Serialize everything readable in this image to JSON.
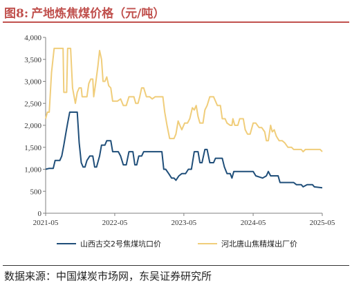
{
  "header": {
    "figure_label": "图8:",
    "title": "产地炼焦煤价格（元/吨）"
  },
  "source": {
    "text": "数据来源：中国煤炭市场网，东吴证券研究所"
  },
  "chart_data": {
    "type": "line",
    "title": "产地炼焦煤价格（元/吨）",
    "xlabel": "",
    "ylabel": "",
    "ylim": [
      0,
      4000
    ],
    "yticks": [
      0,
      500,
      1000,
      1500,
      2000,
      2500,
      3000,
      3500,
      4000
    ],
    "ytick_labels": [
      "0",
      "500",
      "1,000",
      "1,500",
      "2,000",
      "2,500",
      "3,000",
      "3,500",
      "4,000"
    ],
    "xlim": [
      "2021-05",
      "2025-05"
    ],
    "xticks": [
      "2021-05",
      "2022-05",
      "2023-05",
      "2024-05",
      "2025-05"
    ],
    "grid": false,
    "legend_position": "bottom",
    "series": [
      {
        "name": "山西古交2号焦煤坑口价",
        "color": "#1f4e79",
        "points": [
          [
            "2021-05-01",
            1000
          ],
          [
            "2021-05-20",
            1020
          ],
          [
            "2021-06-10",
            1020
          ],
          [
            "2021-06-20",
            1200
          ],
          [
            "2021-07-15",
            1200
          ],
          [
            "2021-07-25",
            1300
          ],
          [
            "2021-08-05",
            1550
          ],
          [
            "2021-08-15",
            1800
          ],
          [
            "2021-08-25",
            2050
          ],
          [
            "2021-09-05",
            2300
          ],
          [
            "2021-10-15",
            2300
          ],
          [
            "2021-10-25",
            1600
          ],
          [
            "2021-11-05",
            1150
          ],
          [
            "2021-11-15",
            1050
          ],
          [
            "2021-11-25",
            1050
          ],
          [
            "2021-12-05",
            1200
          ],
          [
            "2021-12-20",
            1300
          ],
          [
            "2022-01-05",
            1300
          ],
          [
            "2022-01-15",
            1050
          ],
          [
            "2022-01-25",
            1050
          ],
          [
            "2022-02-10",
            1300
          ],
          [
            "2022-02-20",
            1550
          ],
          [
            "2022-03-10",
            1550
          ],
          [
            "2022-03-20",
            1650
          ],
          [
            "2022-04-10",
            1650
          ],
          [
            "2022-04-20",
            1400
          ],
          [
            "2022-05-20",
            1400
          ],
          [
            "2022-06-01",
            1300
          ],
          [
            "2022-06-15",
            1100
          ],
          [
            "2022-07-01",
            1100
          ],
          [
            "2022-07-15",
            1400
          ],
          [
            "2022-08-05",
            1400
          ],
          [
            "2022-08-15",
            1100
          ],
          [
            "2022-08-25",
            1100
          ],
          [
            "2022-09-05",
            1300
          ],
          [
            "2022-09-20",
            1300
          ],
          [
            "2022-10-01",
            1400
          ],
          [
            "2022-12-20",
            1400
          ],
          [
            "2023-01-05",
            1400
          ],
          [
            "2023-01-15",
            1000
          ],
          [
            "2023-01-25",
            1000
          ],
          [
            "2023-02-10",
            900
          ],
          [
            "2023-02-25",
            800
          ],
          [
            "2023-03-10",
            800
          ],
          [
            "2023-03-20",
            750
          ],
          [
            "2023-04-05",
            850
          ],
          [
            "2023-04-20",
            900
          ],
          [
            "2023-05-10",
            900
          ],
          [
            "2023-05-25",
            1000
          ],
          [
            "2023-06-10",
            1000
          ],
          [
            "2023-06-25",
            1400
          ],
          [
            "2023-07-15",
            1400
          ],
          [
            "2023-07-25",
            1150
          ],
          [
            "2023-08-05",
            1150
          ],
          [
            "2023-08-20",
            1450
          ],
          [
            "2023-09-01",
            1450
          ],
          [
            "2023-09-15",
            1150
          ],
          [
            "2023-10-05",
            1150
          ],
          [
            "2023-10-15",
            1250
          ],
          [
            "2023-11-20",
            1250
          ],
          [
            "2023-12-01",
            1050
          ],
          [
            "2023-12-15",
            900
          ],
          [
            "2024-01-01",
            900
          ],
          [
            "2024-01-10",
            800
          ],
          [
            "2024-01-20",
            950
          ],
          [
            "2024-05-01",
            950
          ],
          [
            "2024-05-15",
            850
          ],
          [
            "2024-06-20",
            800
          ],
          [
            "2024-07-10",
            850
          ],
          [
            "2024-07-20",
            950
          ],
          [
            "2024-08-01",
            850
          ],
          [
            "2024-09-10",
            850
          ],
          [
            "2024-09-20",
            700
          ],
          [
            "2024-12-01",
            700
          ],
          [
            "2024-12-15",
            650
          ],
          [
            "2025-01-10",
            650
          ],
          [
            "2025-01-20",
            600
          ],
          [
            "2025-02-10",
            650
          ],
          [
            "2025-03-10",
            650
          ],
          [
            "2025-03-20",
            600
          ],
          [
            "2025-05-01",
            580
          ]
        ]
      },
      {
        "name": "河北唐山焦精煤出厂价",
        "color": "#f0cd7a",
        "points": [
          [
            "2021-05-01",
            2150
          ],
          [
            "2021-05-10",
            2300
          ],
          [
            "2021-05-20",
            2300
          ],
          [
            "2021-06-01",
            3200
          ],
          [
            "2021-06-15",
            3750
          ],
          [
            "2021-08-01",
            3750
          ],
          [
            "2021-08-05",
            2750
          ],
          [
            "2021-08-20",
            2750
          ],
          [
            "2021-08-25",
            3750
          ],
          [
            "2021-09-10",
            3750
          ],
          [
            "2021-09-20",
            2850
          ],
          [
            "2021-10-05",
            2500
          ],
          [
            "2021-10-15",
            2750
          ],
          [
            "2021-10-25",
            2850
          ],
          [
            "2021-11-05",
            2850
          ],
          [
            "2021-11-10",
            2650
          ],
          [
            "2021-11-20",
            2650
          ],
          [
            "2021-12-05",
            2650
          ],
          [
            "2021-12-15",
            2950
          ],
          [
            "2021-12-25",
            3050
          ],
          [
            "2022-01-05",
            3050
          ],
          [
            "2022-01-10",
            2650
          ],
          [
            "2022-01-20",
            2950
          ],
          [
            "2022-02-01",
            3350
          ],
          [
            "2022-02-10",
            3700
          ],
          [
            "2022-02-20",
            3500
          ],
          [
            "2022-02-28",
            3000
          ],
          [
            "2022-03-10",
            3000
          ],
          [
            "2022-03-20",
            3100
          ],
          [
            "2022-03-30",
            2900
          ],
          [
            "2022-04-10",
            2850
          ],
          [
            "2022-04-20",
            2550
          ],
          [
            "2022-05-01",
            2550
          ],
          [
            "2022-05-15",
            2550
          ],
          [
            "2022-06-01",
            2600
          ],
          [
            "2022-06-15",
            2450
          ],
          [
            "2022-07-01",
            2450
          ],
          [
            "2022-07-15",
            2650
          ],
          [
            "2022-08-01",
            2650
          ],
          [
            "2022-08-10",
            2650
          ],
          [
            "2022-08-20",
            2500
          ],
          [
            "2022-09-01",
            2500
          ],
          [
            "2022-09-10",
            2650
          ],
          [
            "2022-09-20",
            2850
          ],
          [
            "2022-10-01",
            2850
          ],
          [
            "2022-10-15",
            2650
          ],
          [
            "2022-11-01",
            2650
          ],
          [
            "2022-11-15",
            2600
          ],
          [
            "2022-12-01",
            2650
          ],
          [
            "2023-01-10",
            2650
          ],
          [
            "2023-01-20",
            2300
          ],
          [
            "2023-02-01",
            2000
          ],
          [
            "2023-02-15",
            1700
          ],
          [
            "2023-03-10",
            1700
          ],
          [
            "2023-03-20",
            1800
          ],
          [
            "2023-04-01",
            2100
          ],
          [
            "2023-04-10",
            2000
          ],
          [
            "2023-04-20",
            1900
          ],
          [
            "2023-05-05",
            2050
          ],
          [
            "2023-05-20",
            2050
          ],
          [
            "2023-06-01",
            2150
          ],
          [
            "2023-06-15",
            2400
          ],
          [
            "2023-06-25",
            2350
          ],
          [
            "2023-07-05",
            2450
          ],
          [
            "2023-07-15",
            2200
          ],
          [
            "2023-07-25",
            2050
          ],
          [
            "2023-08-10",
            2050
          ],
          [
            "2023-08-20",
            2350
          ],
          [
            "2023-09-01",
            2450
          ],
          [
            "2023-09-15",
            2650
          ],
          [
            "2023-10-05",
            2650
          ],
          [
            "2023-10-15",
            2550
          ],
          [
            "2023-10-25",
            2450
          ],
          [
            "2023-11-10",
            2450
          ],
          [
            "2023-11-20",
            2150
          ],
          [
            "2023-12-05",
            2150
          ],
          [
            "2023-12-15",
            2050
          ],
          [
            "2024-01-01",
            2000
          ],
          [
            "2024-01-10",
            2000
          ],
          [
            "2024-01-15",
            2150
          ],
          [
            "2024-01-25",
            2000
          ],
          [
            "2024-02-10",
            2000
          ],
          [
            "2024-02-20",
            2150
          ],
          [
            "2024-03-10",
            2150
          ],
          [
            "2024-03-20",
            1900
          ],
          [
            "2024-04-01",
            1800
          ],
          [
            "2024-04-15",
            1800
          ],
          [
            "2024-05-01",
            2050
          ],
          [
            "2024-05-15",
            2050
          ],
          [
            "2024-06-01",
            1950
          ],
          [
            "2024-06-15",
            1950
          ],
          [
            "2024-07-01",
            1850
          ],
          [
            "2024-07-10",
            1650
          ],
          [
            "2024-07-20",
            1650
          ],
          [
            "2024-08-01",
            2000
          ],
          [
            "2024-08-10",
            1850
          ],
          [
            "2024-08-20",
            1900
          ],
          [
            "2024-09-01",
            1750
          ],
          [
            "2024-09-15",
            1650
          ],
          [
            "2024-10-01",
            1650
          ],
          [
            "2024-10-15",
            1600
          ],
          [
            "2024-11-01",
            1500
          ],
          [
            "2024-11-20",
            1500
          ],
          [
            "2024-12-01",
            1450
          ],
          [
            "2025-01-10",
            1450
          ],
          [
            "2025-01-20",
            1400
          ],
          [
            "2025-02-01",
            1450
          ],
          [
            "2025-04-20",
            1450
          ],
          [
            "2025-05-01",
            1400
          ]
        ]
      }
    ]
  }
}
